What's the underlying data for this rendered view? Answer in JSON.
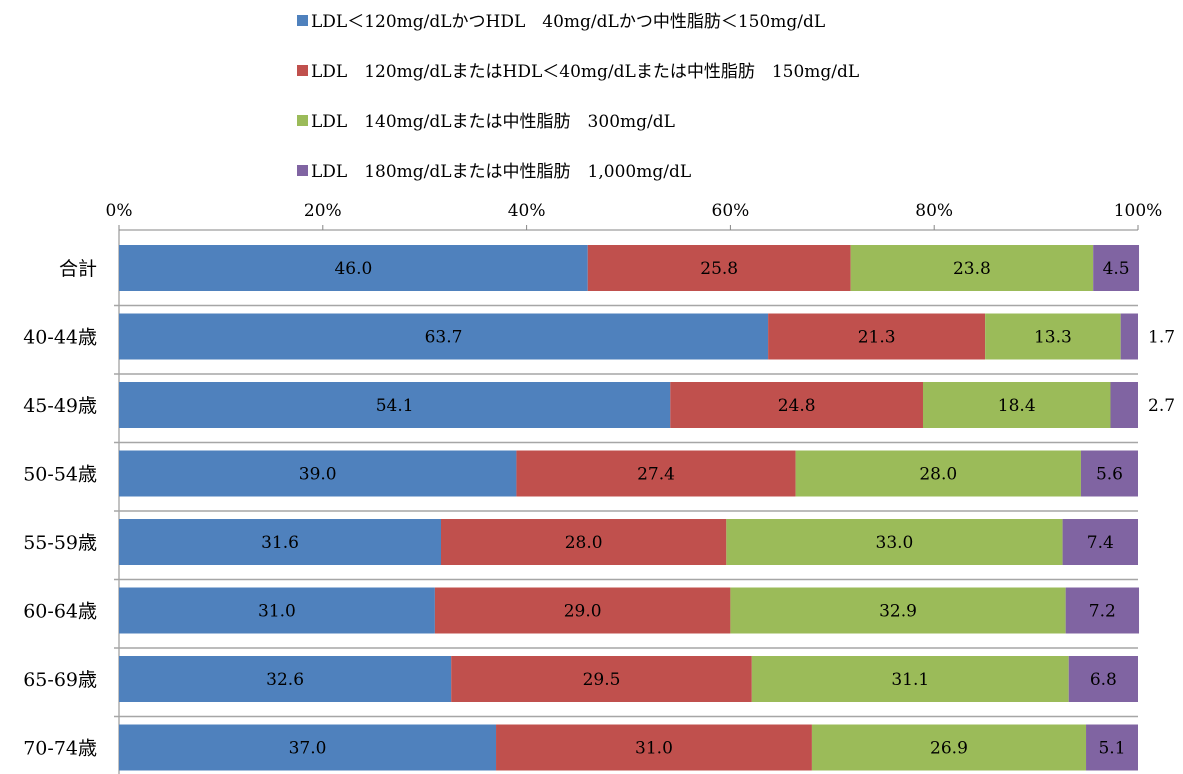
{
  "chart_data": {
    "type": "bar",
    "orientation": "horizontal",
    "stacked": true,
    "percent_stacked": true,
    "categories": [
      "合計",
      "40-44歳",
      "45-49歳",
      "50-54歳",
      "55-59歳",
      "60-64歳",
      "65-69歳",
      "70-74歳"
    ],
    "series": [
      {
        "name": "LDL＜120mg/dLかつHDL　40mg/dLかつ中性脂肪＜150mg/dL",
        "color": "#4f81bd",
        "values": [
          46.0,
          63.7,
          54.1,
          39.0,
          31.6,
          31.0,
          32.6,
          37.0
        ]
      },
      {
        "name": "LDL　120mg/dLまたはHDL＜40mg/dLまたは中性脂肪　150mg/dL",
        "color": "#c0504d",
        "values": [
          25.8,
          21.3,
          24.8,
          27.4,
          28.0,
          29.0,
          29.5,
          31.0
        ]
      },
      {
        "name": "LDL　140mg/dLまたは中性脂肪　300mg/dL",
        "color": "#9bbb59",
        "values": [
          23.8,
          13.3,
          18.4,
          28.0,
          33.0,
          32.9,
          31.1,
          26.9
        ]
      },
      {
        "name": "LDL　180mg/dLまたは中性脂肪　1,000mg/dL",
        "color": "#8064a2",
        "values": [
          4.5,
          1.7,
          2.7,
          5.6,
          7.4,
          7.2,
          6.8,
          5.1
        ]
      }
    ],
    "value_labels": [
      [
        "46.0",
        "63.7",
        "54.1",
        "39.0",
        "31.6",
        "31.0",
        "32.6",
        "37.0"
      ],
      [
        "25.8",
        "21.3",
        "24.8",
        "27.4",
        "28.0",
        "29.0",
        "29.5",
        "31.0"
      ],
      [
        "23.8",
        "13.3",
        "18.4",
        "28.0",
        "33.0",
        "32.9",
        "31.1",
        "26.9"
      ],
      [
        "4.5",
        "1.7",
        "2.7",
        "5.6",
        "7.4",
        "7.2",
        "6.8",
        "5.1"
      ]
    ],
    "outside_labels": [
      false,
      true,
      true,
      false,
      false,
      false,
      false,
      false
    ],
    "x_ticks": [
      "0%",
      "20%",
      "40%",
      "60%",
      "80%",
      "100%"
    ],
    "xlim": [
      0,
      100
    ],
    "x_axis_position": "top",
    "legend_position": "top",
    "grid": false
  }
}
